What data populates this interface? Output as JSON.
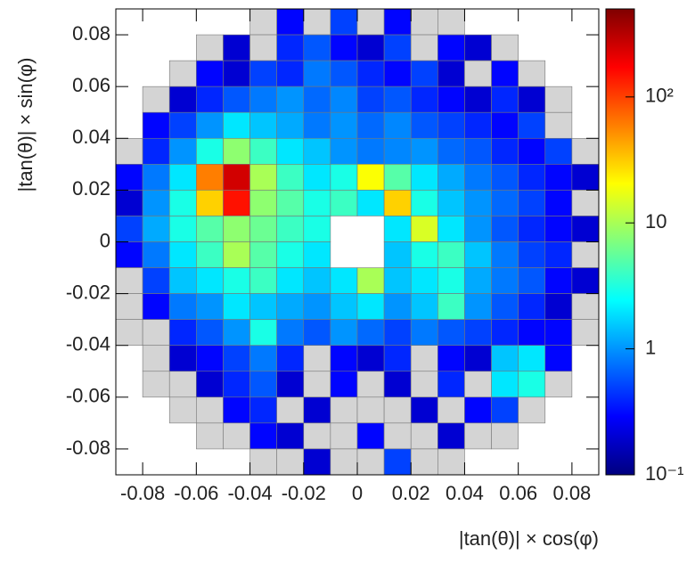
{
  "chart_data": {
    "type": "heatmap",
    "x_label": "|tan(θ)| × cos(φ)",
    "y_label": "|tan(θ)| × sin(φ)",
    "xlim": [
      -0.09,
      0.09
    ],
    "ylim": [
      -0.09,
      0.09
    ],
    "xticks": [
      -0.08,
      -0.06,
      -0.04,
      -0.02,
      0,
      0.02,
      0.04,
      0.06,
      0.08
    ],
    "yticks": [
      -0.08,
      -0.06,
      -0.04,
      -0.02,
      0,
      0.02,
      0.04,
      0.06,
      0.08
    ],
    "zlim": [
      0.1,
      500
    ],
    "zscale": "log",
    "zticks": [
      {
        "value": 0.1,
        "label": "10⁻¹"
      },
      1,
      10,
      {
        "value": 100,
        "label": "10²"
      }
    ],
    "colorscale": [
      "#00007f",
      "#0000ff",
      "#007fff",
      "#00ffff",
      "#7fff7f",
      "#ffff00",
      "#ff7f00",
      "#ff0000",
      "#7f0000"
    ],
    "empty_color": "#d4d4d4",
    "z": [
      [
        null,
        null,
        null,
        null,
        null,
        0,
        0.3,
        0,
        0.5,
        0,
        0.3,
        0,
        0,
        null,
        null,
        null,
        null,
        null
      ],
      [
        null,
        null,
        null,
        0,
        0.2,
        0,
        0.4,
        0.6,
        0.3,
        0.2,
        0.5,
        0,
        0.3,
        0.2,
        0,
        null,
        null,
        null
      ],
      [
        null,
        null,
        0,
        0.3,
        0.2,
        0.5,
        0.4,
        0.8,
        0.6,
        0.4,
        0.3,
        0.5,
        0.2,
        0,
        0.3,
        0,
        null,
        null
      ],
      [
        null,
        0,
        0.2,
        0.4,
        0.6,
        0.8,
        1,
        0.7,
        0.9,
        0.5,
        0.6,
        0.4,
        0.3,
        0.2,
        0.4,
        0.2,
        0,
        null
      ],
      [
        null,
        0.3,
        0.5,
        1,
        2,
        1.5,
        1.2,
        0.8,
        1,
        0.7,
        0.9,
        0.6,
        0.5,
        0.4,
        0.3,
        0.5,
        0,
        null
      ],
      [
        0,
        0.4,
        1,
        3,
        8,
        4,
        2,
        1.5,
        1,
        0.8,
        0.9,
        1,
        0.7,
        0.6,
        0.4,
        0.3,
        0.5,
        0
      ],
      [
        0.3,
        0.8,
        2,
        60,
        250,
        10,
        4,
        2,
        3,
        20,
        5,
        2,
        1.2,
        0.8,
        0.6,
        0.4,
        0.3,
        0.2
      ],
      [
        0.2,
        1,
        3,
        30,
        150,
        8,
        5,
        3,
        4,
        2,
        30,
        3,
        1.5,
        1,
        0.7,
        0.5,
        0.3,
        0
      ],
      [
        0.5,
        1.2,
        3,
        5,
        8,
        6,
        4,
        3,
        null,
        null,
        2,
        15,
        2,
        1,
        0.6,
        0.4,
        0.3,
        0.2
      ],
      [
        0.3,
        0.8,
        2,
        4,
        10,
        5,
        3,
        2,
        null,
        null,
        1.5,
        3,
        4,
        1.5,
        0.8,
        0.5,
        0.4,
        0
      ],
      [
        0,
        0.5,
        1.5,
        2,
        3,
        4,
        2,
        1.5,
        2,
        10,
        1.5,
        2,
        3,
        1.2,
        0.8,
        0.6,
        0.3,
        0.2
      ],
      [
        0,
        0.3,
        0.8,
        1,
        2,
        1.5,
        1.2,
        1,
        1.5,
        2,
        1,
        1.5,
        4,
        1,
        0.6,
        0.4,
        0.2,
        0
      ],
      [
        0,
        0,
        0.4,
        0.6,
        1,
        3,
        0.8,
        0.6,
        1,
        0.7,
        0.5,
        0.8,
        0.6,
        0.5,
        0.4,
        0.3,
        0.3,
        0
      ],
      [
        null,
        0,
        0.2,
        0.3,
        0.5,
        0.8,
        0.4,
        0,
        0.3,
        0.2,
        0.4,
        0,
        0.3,
        0.2,
        1.5,
        2,
        0.3,
        null
      ],
      [
        null,
        0,
        0,
        0.2,
        0.4,
        0.6,
        0.2,
        0,
        0.3,
        0,
        0.2,
        0,
        0.4,
        0,
        2,
        3,
        0,
        null
      ],
      [
        null,
        null,
        0,
        0,
        0.3,
        0.4,
        0,
        0.2,
        0,
        0,
        0,
        0.2,
        0,
        0.3,
        0.5,
        0,
        null,
        null
      ],
      [
        null,
        null,
        null,
        0,
        0,
        0.3,
        0.2,
        0,
        0,
        0.3,
        0,
        0,
        0.2,
        0,
        0,
        null,
        null,
        null
      ],
      [
        null,
        null,
        null,
        null,
        null,
        0,
        0,
        0.2,
        0,
        0,
        0.5,
        0,
        0,
        null,
        null,
        null,
        null,
        null
      ]
    ]
  }
}
